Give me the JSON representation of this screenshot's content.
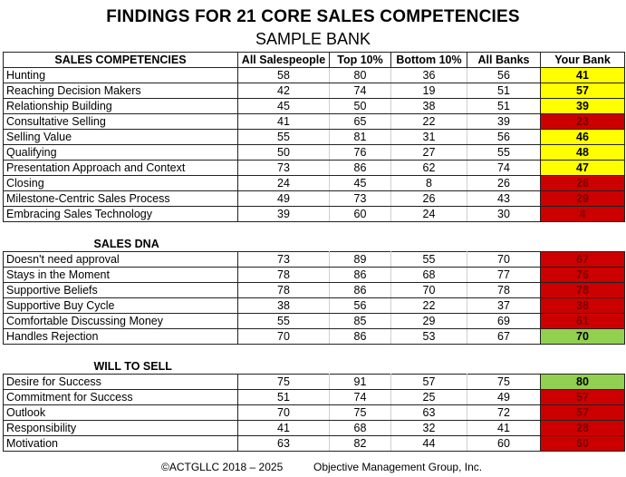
{
  "title": "FINDINGS FOR 21 CORE SALES COMPETENCIES",
  "subtitle": "SAMPLE BANK",
  "columns": [
    "SALES COMPETENCIES",
    "All Salespeople",
    "Top 10%",
    "Bottom 10%",
    "All Banks",
    "Your Bank"
  ],
  "sections": [
    {
      "heading": "",
      "rows": [
        {
          "name": "Hunting",
          "all": "58",
          "top": "80",
          "bottom": "36",
          "banks": "56",
          "yours": "41",
          "color": "yellow"
        },
        {
          "name": "Reaching Decision Makers",
          "all": "42",
          "top": "74",
          "bottom": "19",
          "banks": "51",
          "yours": "57",
          "color": "yellow"
        },
        {
          "name": "Relationship Building",
          "all": "45",
          "top": "50",
          "bottom": "38",
          "banks": "51",
          "yours": "39",
          "color": "yellow"
        },
        {
          "name": "Consultative Selling",
          "all": "41",
          "top": "65",
          "bottom": "22",
          "banks": "39",
          "yours": "23",
          "color": "red"
        },
        {
          "name": "Selling Value",
          "all": "55",
          "top": "81",
          "bottom": "31",
          "banks": "56",
          "yours": "46",
          "color": "yellow"
        },
        {
          "name": "Qualifying",
          "all": "50",
          "top": "76",
          "bottom": "27",
          "banks": "55",
          "yours": "48",
          "color": "yellow"
        },
        {
          "name": "Presentation Approach and Context",
          "all": "73",
          "top": "86",
          "bottom": "62",
          "banks": "74",
          "yours": "47",
          "color": "yellow"
        },
        {
          "name": "Closing",
          "all": "24",
          "top": "45",
          "bottom": "8",
          "banks": "26",
          "yours": "26",
          "color": "red"
        },
        {
          "name": "Milestone-Centric Sales Process",
          "all": "49",
          "top": "73",
          "bottom": "26",
          "banks": "43",
          "yours": "29",
          "color": "red"
        },
        {
          "name": "Embracing Sales Technology",
          "all": "39",
          "top": "60",
          "bottom": "24",
          "banks": "30",
          "yours": "4",
          "color": "red"
        }
      ]
    },
    {
      "heading": "SALES DNA",
      "rows": [
        {
          "name": "Doesn't need approval",
          "all": "73",
          "top": "89",
          "bottom": "55",
          "banks": "70",
          "yours": "67",
          "color": "red"
        },
        {
          "name": "Stays in the Moment",
          "all": "78",
          "top": "86",
          "bottom": "68",
          "banks": "77",
          "yours": "76",
          "color": "red"
        },
        {
          "name": "Supportive Beliefs",
          "all": "78",
          "top": "86",
          "bottom": "70",
          "banks": "78",
          "yours": "78",
          "color": "red"
        },
        {
          "name": "Supportive Buy Cycle",
          "all": "38",
          "top": "56",
          "bottom": "22",
          "banks": "37",
          "yours": "38",
          "color": "red"
        },
        {
          "name": "Comfortable Discussing Money",
          "all": "55",
          "top": "85",
          "bottom": "29",
          "banks": "69",
          "yours": "61",
          "color": "red"
        },
        {
          "name": "Handles Rejection",
          "all": "70",
          "top": "86",
          "bottom": "53",
          "banks": "67",
          "yours": "70",
          "color": "green"
        }
      ]
    },
    {
      "heading": "WILL TO SELL",
      "rows": [
        {
          "name": "Desire for Success",
          "all": "75",
          "top": "91",
          "bottom": "57",
          "banks": "75",
          "yours": "80",
          "color": "green"
        },
        {
          "name": "Commitment for Success",
          "all": "51",
          "top": "74",
          "bottom": "25",
          "banks": "49",
          "yours": "57",
          "color": "red"
        },
        {
          "name": "Outlook",
          "all": "70",
          "top": "75",
          "bottom": "63",
          "banks": "72",
          "yours": "57",
          "color": "red"
        },
        {
          "name": "Responsibility",
          "all": "41",
          "top": "68",
          "bottom": "32",
          "banks": "41",
          "yours": "28",
          "color": "red"
        },
        {
          "name": "Motivation",
          "all": "63",
          "top": "82",
          "bottom": "44",
          "banks": "60",
          "yours": "60",
          "color": "red"
        }
      ]
    }
  ],
  "colors": {
    "yellow": "#ffff00",
    "red": "#cc0000",
    "green": "#92d050"
  },
  "footer": {
    "copyright": "©ACTGLLC 2018 – 2025",
    "company": "Objective Management Group, Inc."
  }
}
